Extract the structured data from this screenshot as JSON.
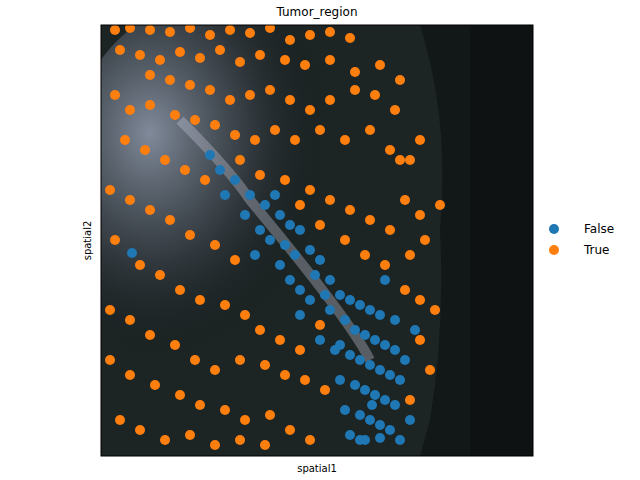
{
  "chart_data": {
    "type": "scatter",
    "title": "Tumor_region",
    "x_label": "spatial1",
    "y_label": "spatial2",
    "xlim": [
      101,
      533
    ],
    "ylim": [
      456,
      25
    ],
    "tick_labels": false,
    "legend": "right",
    "marker": "circle",
    "series": [
      {
        "name": "False",
        "color": "#1f77b4",
        "x": [
          210,
          220,
          235,
          250,
          265,
          280,
          290,
          300,
          260,
          270,
          285,
          295,
          310,
          320,
          280,
          290,
          300,
          315,
          330,
          340,
          350,
          360,
          370,
          380,
          330,
          345,
          355,
          365,
          375,
          385,
          395,
          320,
          335,
          350,
          360,
          370,
          380,
          390,
          400,
          340,
          355,
          365,
          375,
          385,
          395,
          345,
          360,
          370,
          380,
          390,
          350,
          365,
          380,
          400,
          410,
          405,
          415,
          395,
          245,
          255,
          275,
          132,
          225,
          310,
          325,
          385,
          340,
          300,
          360,
          372
        ],
        "y": [
          155,
          170,
          180,
          195,
          205,
          215,
          225,
          230,
          230,
          240,
          245,
          255,
          250,
          260,
          265,
          280,
          290,
          275,
          280,
          295,
          300,
          305,
          310,
          315,
          310,
          320,
          330,
          335,
          340,
          345,
          350,
          340,
          350,
          355,
          360,
          365,
          370,
          375,
          380,
          380,
          385,
          390,
          395,
          400,
          405,
          410,
          415,
          420,
          425,
          430,
          435,
          440,
          438,
          440,
          420,
          360,
          330,
          320,
          215,
          255,
          195,
          253,
          195,
          300,
          295,
          280,
          345,
          315,
          440,
          405
        ]
      },
      {
        "name": "True",
        "color": "#ff7f0e",
        "x": [
          115,
          130,
          150,
          170,
          190,
          210,
          230,
          250,
          270,
          290,
          310,
          330,
          350,
          120,
          140,
          160,
          180,
          200,
          220,
          240,
          260,
          285,
          305,
          330,
          355,
          380,
          400,
          150,
          170,
          190,
          210,
          230,
          250,
          270,
          290,
          310,
          330,
          355,
          375,
          395,
          115,
          130,
          150,
          175,
          195,
          215,
          235,
          255,
          275,
          295,
          320,
          345,
          370,
          390,
          410,
          125,
          145,
          165,
          185,
          205,
          240,
          260,
          285,
          310,
          330,
          350,
          370,
          390,
          405,
          420,
          440,
          110,
          130,
          150,
          170,
          190,
          215,
          235,
          300,
          320,
          345,
          365,
          385,
          410,
          425,
          115,
          140,
          160,
          180,
          200,
          225,
          245,
          260,
          280,
          300,
          320,
          405,
          420,
          435,
          110,
          130,
          150,
          175,
          195,
          215,
          240,
          265,
          285,
          305,
          325,
          110,
          130,
          155,
          180,
          200,
          225,
          245,
          270,
          290,
          310,
          120,
          140,
          165,
          190,
          215,
          240,
          265,
          420,
          430,
          410,
          400,
          420
        ],
        "y": [
          30,
          28,
          30,
          32,
          28,
          35,
          30,
          33,
          28,
          40,
          35,
          32,
          38,
          50,
          55,
          60,
          52,
          58,
          50,
          62,
          55,
          60,
          65,
          60,
          72,
          65,
          80,
          75,
          80,
          85,
          90,
          100,
          95,
          90,
          100,
          110,
          100,
          90,
          95,
          110,
          95,
          110,
          105,
          115,
          120,
          125,
          135,
          140,
          130,
          140,
          130,
          140,
          130,
          150,
          160,
          140,
          150,
          160,
          170,
          180,
          160,
          175,
          180,
          190,
          200,
          210,
          220,
          230,
          200,
          215,
          205,
          190,
          200,
          210,
          220,
          235,
          245,
          260,
          205,
          225,
          240,
          255,
          265,
          255,
          240,
          240,
          265,
          275,
          290,
          300,
          305,
          315,
          330,
          340,
          350,
          325,
          290,
          300,
          310,
          310,
          320,
          335,
          345,
          360,
          370,
          360,
          365,
          375,
          380,
          390,
          360,
          375,
          385,
          395,
          405,
          410,
          420,
          415,
          430,
          440,
          420,
          430,
          440,
          435,
          445,
          440,
          445,
          340,
          370,
          400,
          160,
          140
        ]
      }
    ]
  }
}
